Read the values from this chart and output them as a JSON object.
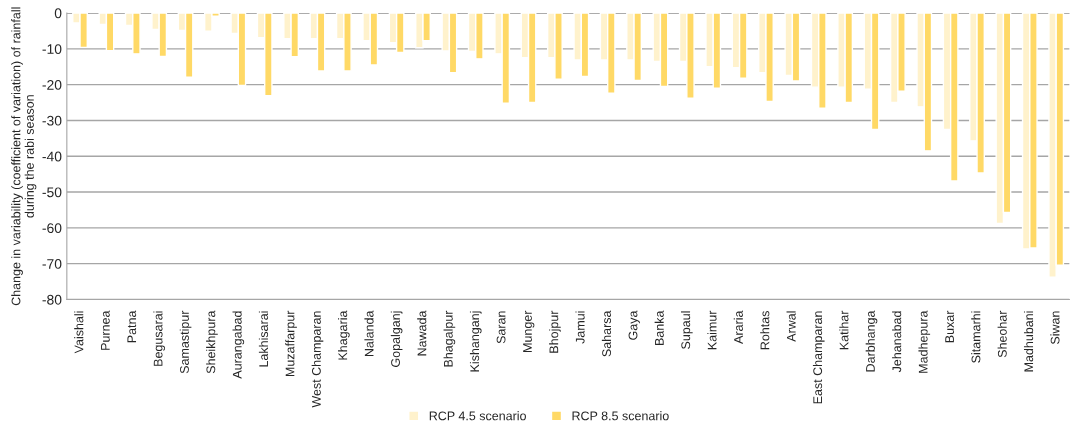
{
  "chart_data": {
    "type": "bar",
    "ylabel": "Change in variability (coefficient of variation) of rainfall during the rabi season",
    "categories": [
      "Vaishali",
      "Purnea",
      "Patna",
      "Begusarai",
      "Samastipur",
      "Sheikhpura",
      "Aurangabad",
      "Lakhisarai",
      "Muzaffarpur",
      "West Champaran",
      "Khagaria",
      "Nalanda",
      "Gopalganj",
      "Nawada",
      "Bhagalpur",
      "Kishanganj",
      "Saran",
      "Munger",
      "Bhojpur",
      "Jamui",
      "Saharsa",
      "Gaya",
      "Banka",
      "Supaul",
      "Kaimur",
      "Araria",
      "Rohtas",
      "Arwal",
      "East Champaran",
      "Katihar",
      "Darbhanga",
      "Jehanabad",
      "Madhepura",
      "Buxar",
      "Sitamarhi",
      "Sheohar",
      "Madhubani",
      "Siwan"
    ],
    "series": [
      {
        "name": "RCP 4.5 scenario",
        "color": "#fff2cc",
        "values": [
          -2.8,
          -3.2,
          -3.5,
          -4.6,
          -4.9,
          -5.1,
          -5.7,
          -6.9,
          -7.2,
          -7.2,
          -7.2,
          -7.7,
          -8.3,
          -9.7,
          -10.6,
          -10.7,
          -11.4,
          -12.5,
          -12.5,
          -13.1,
          -13.1,
          -13.1,
          -13.5,
          -13.5,
          -15.0,
          -15.3,
          -16.7,
          -17.4,
          -20.7,
          -20.7,
          -21.3,
          -25.0,
          -26.2,
          -32.5,
          -35.7,
          -58.8,
          -65.9,
          -73.8
        ]
      },
      {
        "name": "RCP 8.5 scenario",
        "color": "#ffd966",
        "values": [
          -9.6,
          -10.5,
          -11.4,
          -12.1,
          -17.9,
          -0.9,
          -20.2,
          -23.1,
          -12.2,
          -16.2,
          -16.2,
          -14.5,
          -11.0,
          -7.7,
          -16.7,
          -12.8,
          -25.2,
          -25.0,
          -18.5,
          -17.7,
          -22.4,
          -18.8,
          -20.5,
          -23.8,
          -21.0,
          -18.2,
          -24.7,
          -19.0,
          -26.6,
          -25.0,
          -32.5,
          -21.8,
          -38.5,
          -46.9,
          -44.7,
          -55.7,
          -65.6,
          -70.4
        ]
      }
    ],
    "ylim": [
      -80,
      0
    ],
    "yticks": [
      -80,
      -70,
      -60,
      -50,
      -40,
      -30,
      -20,
      -10,
      0
    ],
    "grid": "y",
    "legend": "bottom"
  }
}
